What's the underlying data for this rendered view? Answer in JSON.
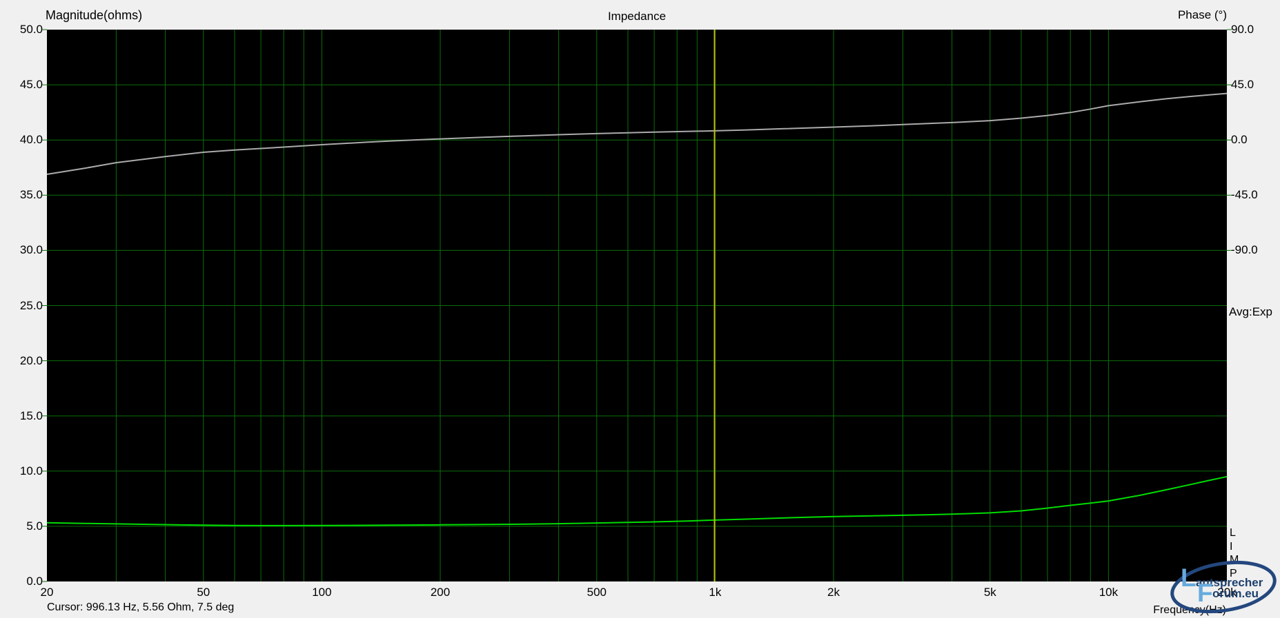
{
  "header": {
    "left_axis_title": "Magnitude(ohms)",
    "title": "Impedance",
    "right_axis_title": "Phase (°)"
  },
  "side": {
    "averaging_label": "Avg:Exp",
    "app_letters": [
      "L",
      "I",
      "M",
      "P"
    ]
  },
  "footer": {
    "x_axis_title": "Frequency(Hz)"
  },
  "status": {
    "cursor_readout": "Cursor: 996.13 Hz, 5.56 Ohm, 7.5 deg"
  },
  "logo": {
    "big_l": "L",
    "word1": "autsprecher",
    "big_f": "F",
    "word2": "orum.eu"
  },
  "colors": {
    "background": "#f0f0f0",
    "plot_background": "#000000",
    "grid": "#0b6e0b",
    "magnitude_curve": "#00dd00",
    "phase_curve": "#ababab",
    "cursor_line": "#bdbd00",
    "text": "#000000",
    "logo_light_blue": "#66aadd",
    "logo_navy": "#1d3f6e"
  },
  "chart_data": {
    "type": "line",
    "title": "Impedance",
    "grid": true,
    "x_axis": {
      "label": "Frequency(Hz)",
      "scale": "log",
      "min": 20,
      "max": 20000,
      "tick_labels": [
        "20",
        "50",
        "100",
        "200",
        "500",
        "1k",
        "2k",
        "5k",
        "10k",
        "20k"
      ],
      "tick_values": [
        20,
        50,
        100,
        200,
        500,
        1000,
        2000,
        5000,
        10000,
        20000
      ],
      "gridline_frequencies": [
        30,
        40,
        50,
        60,
        70,
        80,
        90,
        100,
        200,
        300,
        400,
        500,
        600,
        700,
        800,
        900,
        1000,
        2000,
        3000,
        4000,
        5000,
        6000,
        7000,
        8000,
        9000,
        10000
      ]
    },
    "y_left": {
      "label": "Magnitude(ohms)",
      "min": 0,
      "max": 50,
      "tick_labels": [
        "50.0",
        "45.0",
        "40.0",
        "35.0",
        "30.0",
        "25.0",
        "20.0",
        "15.0",
        "10.0",
        "5.0",
        "0.0"
      ],
      "tick_values": [
        50,
        45,
        40,
        35,
        30,
        25,
        20,
        15,
        10,
        5,
        0
      ],
      "gridline_values": [
        45,
        40,
        35,
        30,
        25,
        20,
        15,
        10,
        5
      ]
    },
    "y_right": {
      "label": "Phase (°)",
      "tick_labels": [
        "90.0",
        "45.0",
        "0.0",
        "-45.0",
        "-90.0"
      ],
      "tick_values": [
        90,
        45,
        0,
        -45,
        -90
      ],
      "zero_deg_at_ohms": 40,
      "deg_per_ohm": 9
    },
    "cursor": {
      "frequency_hz": 996.13,
      "magnitude_ohm": 5.56,
      "phase_deg": 7.5
    },
    "legend": "none",
    "series": [
      {
        "name": "magnitude_ohms",
        "axis": "left",
        "unit": "ohm",
        "x": [
          20,
          25,
          30,
          40,
          50,
          60,
          80,
          100,
          150,
          200,
          300,
          400,
          500,
          700,
          850,
          996.13,
          1200,
          1500,
          2000,
          2500,
          3000,
          3500,
          4000,
          5000,
          6000,
          7000,
          8000,
          9000,
          10000,
          12000,
          14000,
          16000,
          18000,
          20000
        ],
        "y": [
          5.32,
          5.26,
          5.22,
          5.15,
          5.1,
          5.07,
          5.06,
          5.07,
          5.1,
          5.13,
          5.18,
          5.24,
          5.3,
          5.4,
          5.48,
          5.56,
          5.65,
          5.76,
          5.88,
          5.95,
          6.0,
          6.05,
          6.1,
          6.22,
          6.4,
          6.65,
          6.9,
          7.1,
          7.3,
          7.8,
          8.3,
          8.75,
          9.15,
          9.5
        ]
      },
      {
        "name": "phase_deg",
        "axis": "right",
        "unit": "deg",
        "x": [
          20,
          25,
          30,
          40,
          50,
          60,
          70,
          80,
          100,
          130,
          150,
          200,
          250,
          300,
          400,
          500,
          700,
          996.13,
          1200,
          1500,
          2000,
          2500,
          3000,
          4000,
          5000,
          6000,
          7000,
          8000,
          9000,
          10000,
          12000,
          14000,
          16000,
          18000,
          20000
        ],
        "y": [
          -28,
          -23,
          -18.5,
          -13.5,
          -10,
          -8.2,
          -6.9,
          -5.8,
          -3.8,
          -1.8,
          -0.8,
          0.9,
          2.1,
          3.0,
          4.3,
          5.2,
          6.4,
          7.5,
          8.2,
          9.2,
          10.5,
          11.6,
          12.6,
          14.2,
          15.8,
          17.8,
          20.0,
          22.4,
          25.2,
          28.0,
          31.2,
          33.6,
          35.4,
          36.8,
          38.0
        ]
      }
    ]
  }
}
